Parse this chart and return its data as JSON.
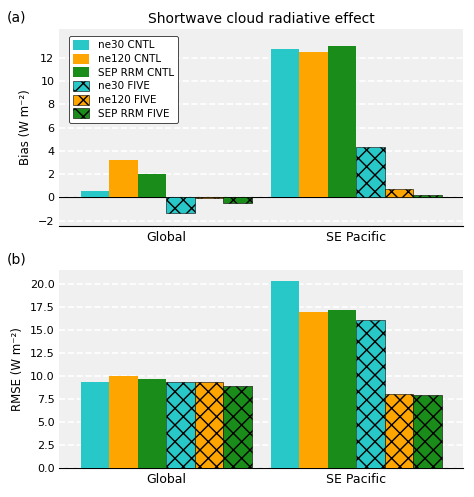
{
  "title": "Shortwave cloud radiative effect",
  "panel_a_label": "(a)",
  "panel_b_label": "(b)",
  "ylabel_a": "Bias (W m⁻²)",
  "ylabel_b": "RMSE (W m⁻²)",
  "categories": [
    "Global",
    "SE Pacific"
  ],
  "series_labels": [
    "ne30 CNTL",
    "ne120 CNTL",
    "SEP RRM CNTL",
    "ne30 FIVE",
    "ne120 FIVE",
    "SEP RRM FIVE"
  ],
  "colors": [
    "#29C8C8",
    "#FFA500",
    "#1A8C1A",
    "#29C8C8",
    "#FFA500",
    "#1A8C1A"
  ],
  "bias_data": {
    "Global": [
      0.55,
      3.2,
      2.05,
      -1.35,
      -0.08,
      -0.45
    ],
    "SE Pacific": [
      12.75,
      12.45,
      13.0,
      4.3,
      0.75,
      0.2
    ]
  },
  "rmse_data": {
    "Global": [
      9.4,
      10.0,
      9.7,
      9.4,
      9.3,
      8.9
    ],
    "SE Pacific": [
      20.3,
      16.9,
      17.2,
      16.1,
      8.0,
      7.9
    ]
  },
  "bias_ylim": [
    -2.5,
    14.5
  ],
  "rmse_ylim": [
    0,
    21.5
  ],
  "bias_yticks": [
    -2,
    0,
    2,
    4,
    6,
    8,
    10,
    12
  ],
  "rmse_yticks": [
    0.0,
    2.5,
    5.0,
    7.5,
    10.0,
    12.5,
    15.0,
    17.5,
    20.0
  ],
  "background_color": "#ffffff",
  "axes_bg_color": "#f0f0f0",
  "grid_color": "white",
  "bar_width": 0.12,
  "group_centers": [
    0.35,
    1.15
  ]
}
